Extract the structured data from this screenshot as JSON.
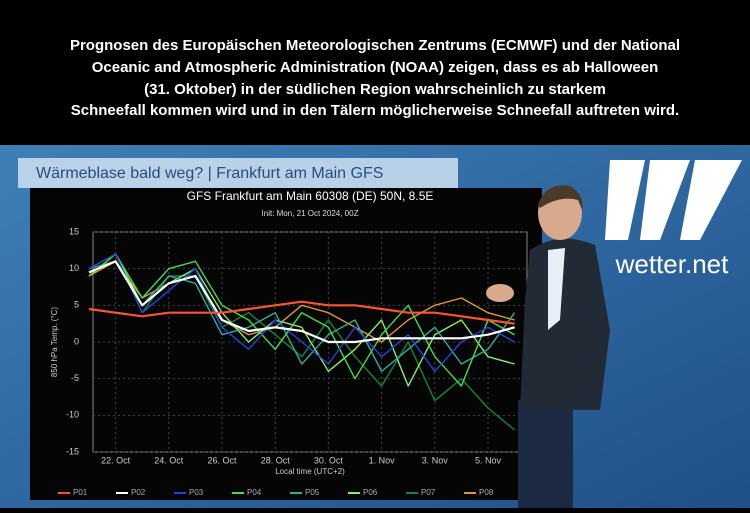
{
  "caption": [
    "Prognosen des Europäischen Meteorologischen Zentrums (ECMWF) und der National",
    "Oceanic and Atmospheric Administration (NOAA) zeigen, dass es ab Halloween",
    "(31. Oktober) in der südlichen Region wahrscheinlich zu starkem",
    "Schneefall kommen wird und in den Tälern möglicherweise Schneefall auftreten wird."
  ],
  "banner": "Wärmeblase bald weg? | Frankfurt am Main GFS",
  "logo": "wetter.net",
  "chart_data": {
    "type": "line",
    "title": "GFS Frankfurt am Main 60308 (DE) 50N, 8.5E",
    "subtitle": "Init: Mon, 21 Oct 2024, 00Z",
    "y_label": "850 hPa Temp. (°C)",
    "x_label": "Local time (UTC+2)",
    "categories": [
      null,
      "22. Oct",
      null,
      "24. Oct",
      null,
      "26. Oct",
      null,
      "28. Oct",
      null,
      "30. Oct",
      null,
      "1. Nov",
      null,
      "3. Nov",
      null,
      "5. Nov",
      null
    ],
    "ylim": [
      -15,
      15
    ],
    "yticks": [
      -15,
      -10,
      -5,
      0,
      5,
      10,
      15
    ],
    "grid": true,
    "series": [
      {
        "name": "P01",
        "color": "#ff5533",
        "values": [
          4.5,
          4,
          3.5,
          4,
          4,
          4,
          4.5,
          5,
          5.5,
          5,
          5,
          4.5,
          4,
          4,
          3.5,
          3,
          2.5
        ]
      },
      {
        "name": "P02",
        "color": "#ffffff",
        "values": [
          9.5,
          11,
          5,
          8,
          9,
          3,
          1.5,
          2,
          1.5,
          0,
          0,
          0.5,
          0.5,
          0.5,
          0.5,
          1,
          2
        ]
      },
      {
        "name": "P03",
        "color": "#2244dd",
        "values": [
          10,
          12,
          4,
          7,
          10,
          2,
          -1,
          3,
          0,
          -3,
          2,
          -2,
          1,
          -4,
          0,
          2,
          0
        ]
      },
      {
        "name": "P04",
        "color": "#44dd44",
        "values": [
          9,
          12,
          6,
          10,
          11,
          5,
          3,
          -1,
          4,
          2,
          -5,
          1,
          5,
          -2,
          -6,
          3,
          1
        ]
      },
      {
        "name": "P05",
        "color": "#33aa99",
        "values": [
          10,
          11,
          5,
          9,
          8,
          1,
          2,
          4,
          -3,
          1,
          3,
          -4,
          -1,
          2,
          -3,
          -1,
          4
        ]
      },
      {
        "name": "P06",
        "color": "#88ee66",
        "values": [
          9,
          12,
          5,
          8,
          10,
          4,
          0,
          3,
          2,
          -4,
          -1,
          3,
          -6,
          1,
          3,
          -2,
          -3
        ]
      },
      {
        "name": "P07",
        "color": "#118833",
        "values": [
          10,
          12,
          4,
          9,
          9,
          2,
          4,
          1,
          -2,
          3,
          -2,
          -6,
          0,
          -8,
          -5,
          -9,
          -12
        ]
      },
      {
        "name": "P08",
        "color": "#dd9933",
        "values": [
          9,
          11,
          6,
          8,
          9,
          3,
          1,
          2,
          5,
          4,
          2,
          0,
          3,
          5,
          6,
          4,
          3
        ]
      }
    ]
  }
}
